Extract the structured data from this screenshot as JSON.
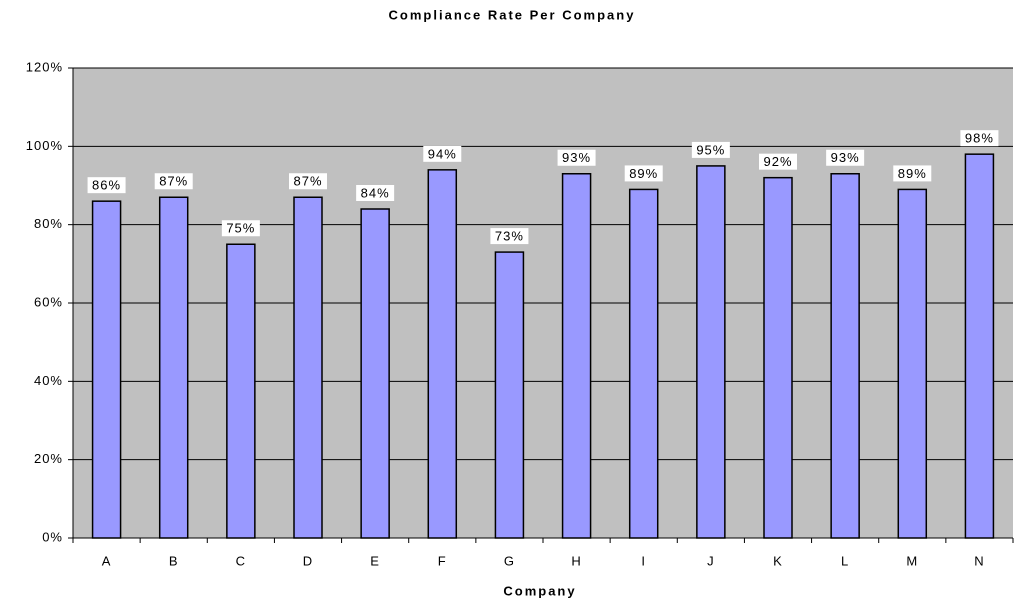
{
  "chart_data": {
    "type": "bar",
    "title": "Compliance Rate Per Company",
    "x_label": "Company",
    "categories": [
      "A",
      "B",
      "C",
      "D",
      "E",
      "F",
      "G",
      "H",
      "I",
      "J",
      "K",
      "L",
      "M",
      "N"
    ],
    "values": [
      86,
      87,
      75,
      87,
      84,
      94,
      73,
      93,
      89,
      95,
      92,
      93,
      89,
      98
    ],
    "value_labels": [
      "86%",
      "87%",
      "75%",
      "87%",
      "84%",
      "94%",
      "73%",
      "93%",
      "89%",
      "95%",
      "92%",
      "93%",
      "89%",
      "98%"
    ],
    "color": "#9999ff",
    "plot_background": "#c0c0c0",
    "ylim": [
      0,
      120
    ],
    "yticks": [
      {
        "value": 0,
        "label": "0%"
      },
      {
        "value": 20,
        "label": "20%"
      },
      {
        "value": 40,
        "label": "40%"
      },
      {
        "value": 60,
        "label": "60%"
      },
      {
        "value": 80,
        "label": "80%"
      },
      {
        "value": 100,
        "label": "100%"
      },
      {
        "value": 120,
        "label": "120%"
      }
    ],
    "grid": true
  }
}
